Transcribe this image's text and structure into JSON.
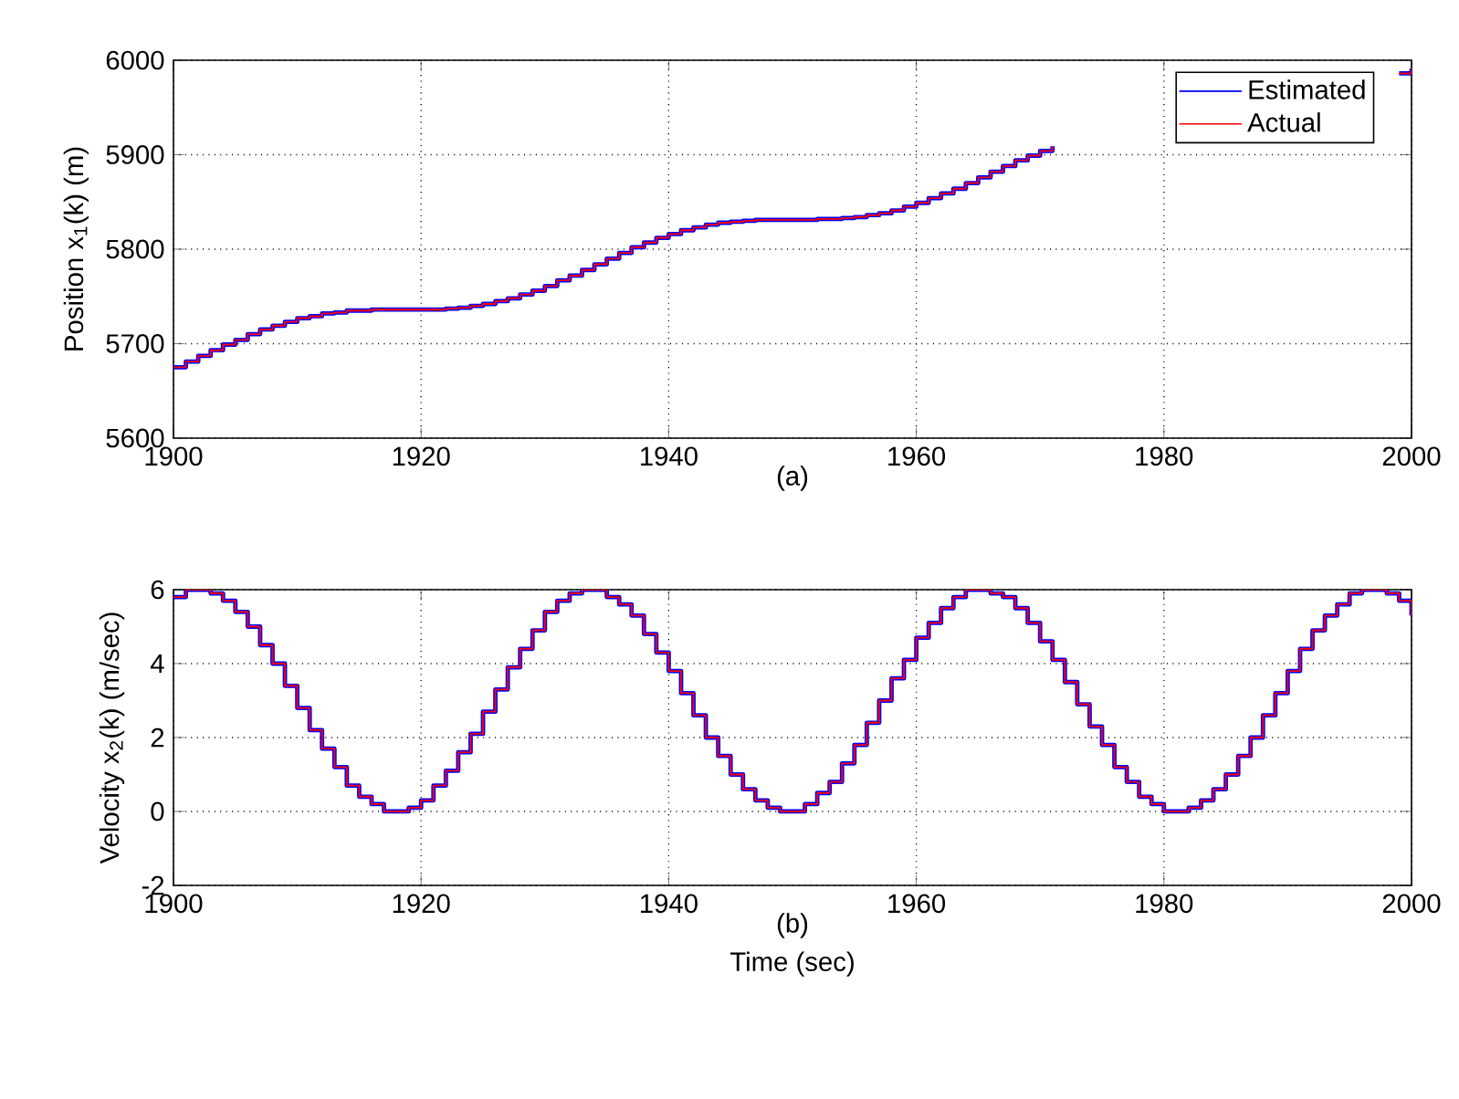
{
  "chart_data": [
    {
      "type": "step",
      "ylabel": "Position x$_{1}$(k) (m)",
      "annotations": [
        "(a)"
      ],
      "xlim": [
        1900,
        2000
      ],
      "xticks": [
        1900,
        1920,
        1940,
        1960,
        1980,
        2000
      ],
      "ylim": [
        5600,
        6000
      ],
      "yticks": [
        5600,
        5700,
        5800,
        5900,
        6000
      ],
      "grid": true,
      "legend": "top right",
      "x": [
        1900,
        1901,
        1902,
        1903,
        1904,
        1905,
        1906,
        1907,
        1908,
        1909,
        1910,
        1911,
        1912,
        1913,
        1914,
        1915,
        1916,
        1917,
        1918,
        1919,
        1920,
        1921,
        1922,
        1923,
        1924,
        1925,
        1926,
        1927,
        1928,
        1929,
        1930,
        1931,
        1932,
        1933,
        1934,
        1935,
        1936,
        1937,
        1938,
        1939,
        1940,
        1941,
        1942,
        1943,
        1944,
        1945,
        1946,
        1947,
        1948,
        1949,
        1950,
        1951,
        1952,
        1953,
        1954,
        1955,
        1956,
        1957,
        1958,
        1959,
        1960,
        1961,
        1962,
        1963,
        1964,
        1965,
        1966,
        1967,
        1968,
        1969,
        1970,
        1971,
        1972,
        1973,
        1974,
        1975,
        1976,
        1977,
        1978,
        1979,
        1980,
        1981,
        1982,
        1983,
        1984,
        1985,
        1986,
        1987,
        1988,
        1989,
        1990,
        1991,
        1992,
        1993,
        1994,
        1995,
        1996,
        1997,
        1998,
        1999,
        2000
      ],
      "series": [
        {
          "name": "Estimated",
          "color": "#0000ff",
          "values": [
            5675,
            5681,
            5687,
            5693,
            5699,
            5704,
            5710,
            5715,
            5719,
            5723,
            5727,
            5729,
            5732,
            5733,
            5735,
            5735,
            5736,
            5736,
            5736,
            5736,
            5736,
            5736,
            5737,
            5738,
            5740,
            5742,
            5745,
            5748,
            5752,
            5756,
            5761,
            5767,
            5772,
            5778,
            5784,
            5790,
            5796,
            5802,
            5807,
            5812,
            5816,
            5820,
            5823,
            5826,
            5828,
            5829,
            5830,
            5831,
            5831,
            5831,
            5831,
            5831,
            5832,
            5832,
            5833,
            5834,
            5836,
            5838,
            5841,
            5845,
            5849,
            5854,
            5859,
            5864,
            5870,
            5876,
            5882,
            5888,
            5894,
            5899,
            5904,
            5909,
            null,
            null,
            null,
            null,
            null,
            null,
            null,
            null,
            null,
            null,
            null,
            null,
            null,
            null,
            null,
            null,
            null,
            null,
            null,
            null,
            null,
            null,
            null,
            null,
            null,
            null,
            null,
            5986,
            5991
          ]
        },
        {
          "name": "Actual",
          "color": "#ff0000",
          "values": [
            5675,
            5681,
            5687,
            5693,
            5699,
            5704,
            5710,
            5715,
            5719,
            5723,
            5727,
            5729,
            5732,
            5733,
            5735,
            5735,
            5736,
            5736,
            5736,
            5736,
            5736,
            5736,
            5737,
            5738,
            5740,
            5742,
            5745,
            5748,
            5752,
            5756,
            5761,
            5767,
            5772,
            5778,
            5784,
            5790,
            5796,
            5802,
            5807,
            5812,
            5816,
            5820,
            5823,
            5826,
            5828,
            5829,
            5830,
            5831,
            5831,
            5831,
            5831,
            5831,
            5832,
            5832,
            5833,
            5834,
            5836,
            5838,
            5841,
            5845,
            5849,
            5854,
            5859,
            5864,
            5870,
            5876,
            5882,
            5888,
            5894,
            5899,
            5904,
            5909,
            null,
            null,
            null,
            null,
            null,
            null,
            null,
            null,
            null,
            null,
            null,
            null,
            null,
            null,
            null,
            null,
            null,
            null,
            null,
            null,
            null,
            null,
            null,
            null,
            null,
            null,
            null,
            5986,
            5991
          ]
        }
      ]
    },
    {
      "type": "step",
      "xlabel": "Time (sec)",
      "ylabel": "Velocity x$_{2}$(k) (m/sec)",
      "annotations": [
        "(b)"
      ],
      "xlim": [
        1900,
        2000
      ],
      "xticks": [
        1900,
        1920,
        1940,
        1960,
        1980,
        2000
      ],
      "ylim": [
        -2,
        6
      ],
      "yticks": [
        -2,
        0,
        2,
        4,
        6
      ],
      "grid": true,
      "x": [
        1900,
        1901,
        1902,
        1903,
        1904,
        1905,
        1906,
        1907,
        1908,
        1909,
        1910,
        1911,
        1912,
        1913,
        1914,
        1915,
        1916,
        1917,
        1918,
        1919,
        1920,
        1921,
        1922,
        1923,
        1924,
        1925,
        1926,
        1927,
        1928,
        1929,
        1930,
        1931,
        1932,
        1933,
        1934,
        1935,
        1936,
        1937,
        1938,
        1939,
        1940,
        1941,
        1942,
        1943,
        1944,
        1945,
        1946,
        1947,
        1948,
        1949,
        1950,
        1951,
        1952,
        1953,
        1954,
        1955,
        1956,
        1957,
        1958,
        1959,
        1960,
        1961,
        1962,
        1963,
        1964,
        1965,
        1966,
        1967,
        1968,
        1969,
        1970,
        1971,
        1972,
        1973,
        1974,
        1975,
        1976,
        1977,
        1978,
        1979,
        1980,
        1981,
        1982,
        1983,
        1984,
        1985,
        1986,
        1987,
        1988,
        1989,
        1990,
        1991,
        1992,
        1993,
        1994,
        1995,
        1996,
        1997,
        1998,
        1999,
        2000
      ],
      "series": [
        {
          "color": "#0000ff",
          "values": [
            5.8,
            6.0,
            6.0,
            5.9,
            5.7,
            5.4,
            5.0,
            4.5,
            4.0,
            3.4,
            2.8,
            2.2,
            1.7,
            1.2,
            0.7,
            0.4,
            0.2,
            0.0,
            0.0,
            0.1,
            0.3,
            0.7,
            1.1,
            1.6,
            2.1,
            2.7,
            3.3,
            3.9,
            4.4,
            4.9,
            5.4,
            5.7,
            5.9,
            6.0,
            6.0,
            5.8,
            5.6,
            5.3,
            4.8,
            4.3,
            3.8,
            3.2,
            2.6,
            2.0,
            1.5,
            1.0,
            0.6,
            0.3,
            0.1,
            0.0,
            0.0,
            0.2,
            0.5,
            0.8,
            1.3,
            1.8,
            2.4,
            3.0,
            3.6,
            4.1,
            4.7,
            5.1,
            5.5,
            5.8,
            6.0,
            6.0,
            5.9,
            5.8,
            5.5,
            5.1,
            4.6,
            4.1,
            3.5,
            2.9,
            2.3,
            1.8,
            1.2,
            0.8,
            0.4,
            0.2,
            0.0,
            0.0,
            0.1,
            0.3,
            0.6,
            1.0,
            1.5,
            2.0,
            2.6,
            3.2,
            3.8,
            4.4,
            4.9,
            5.3,
            5.6,
            5.9,
            6.0,
            6.0,
            5.9,
            5.7,
            5.3
          ]
        },
        {
          "color": "#ff0000",
          "values": [
            5.8,
            6.0,
            6.0,
            5.9,
            5.7,
            5.4,
            5.0,
            4.5,
            4.0,
            3.4,
            2.8,
            2.2,
            1.7,
            1.2,
            0.7,
            0.4,
            0.2,
            0.0,
            0.0,
            0.1,
            0.3,
            0.7,
            1.1,
            1.6,
            2.1,
            2.7,
            3.3,
            3.9,
            4.4,
            4.9,
            5.4,
            5.7,
            5.9,
            6.0,
            6.0,
            5.8,
            5.6,
            5.3,
            4.8,
            4.3,
            3.8,
            3.2,
            2.6,
            2.0,
            1.5,
            1.0,
            0.6,
            0.3,
            0.1,
            0.0,
            0.0,
            0.2,
            0.5,
            0.8,
            1.3,
            1.8,
            2.4,
            3.0,
            3.6,
            4.1,
            4.7,
            5.1,
            5.5,
            5.8,
            6.0,
            6.0,
            5.9,
            5.8,
            5.5,
            5.1,
            4.6,
            4.1,
            3.5,
            2.9,
            2.3,
            1.8,
            1.2,
            0.8,
            0.4,
            0.2,
            0.0,
            0.0,
            0.1,
            0.3,
            0.6,
            1.0,
            1.5,
            2.0,
            2.6,
            3.2,
            3.8,
            4.4,
            4.9,
            5.3,
            5.6,
            5.9,
            6.0,
            6.0,
            5.9,
            5.7,
            5.3
          ]
        }
      ]
    }
  ]
}
